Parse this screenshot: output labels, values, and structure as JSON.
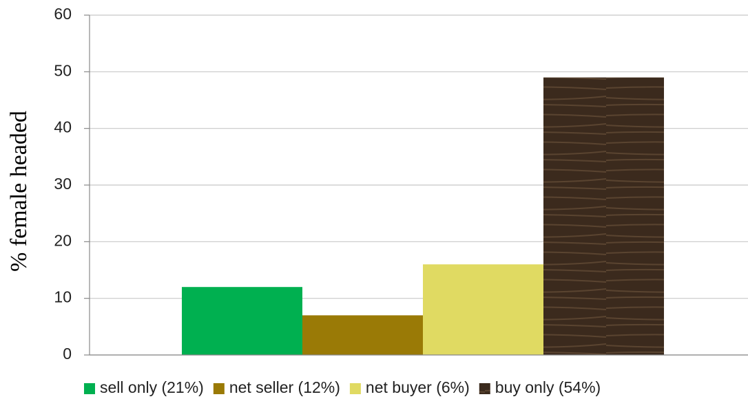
{
  "chart_data": {
    "type": "bar",
    "y_label": "% female headed",
    "categories": [
      null
    ],
    "series": [
      {
        "name": "sell only (21%)",
        "color": "#00b050",
        "values": [
          12
        ]
      },
      {
        "name": "net seller (12%)",
        "color": "#9a7a06",
        "values": [
          7
        ]
      },
      {
        "name": "net buyer (6%)",
        "color": "#e0da62",
        "values": [
          16
        ]
      },
      {
        "name": "buy only (54%)",
        "color": "#3b2a1d",
        "values": [
          49
        ]
      }
    ],
    "ylim": [
      0,
      60
    ],
    "yticks": [
      0,
      10,
      20,
      30,
      40,
      50,
      60
    ],
    "grid": true,
    "legend": "bottom"
  }
}
